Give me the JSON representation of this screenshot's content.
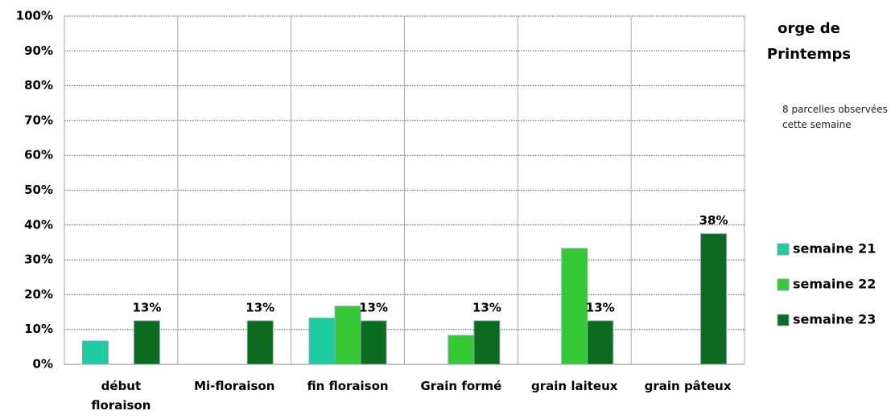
{
  "chart_data": {
    "type": "bar",
    "title": "orge de\nPrintemps",
    "subtitle": "8 parcelles observées cette semaine",
    "categories": [
      "début\nfloraison",
      "Mi-floraison",
      "fin floraison",
      "Grain formé",
      "grain laiteux",
      "grain pâteux"
    ],
    "series": [
      {
        "name": "semaine 21",
        "color": "#1ecba2",
        "values": [
          6.7,
          null,
          13.3,
          null,
          null,
          null
        ]
      },
      {
        "name": "semaine 22",
        "color": "#35c935",
        "values": [
          null,
          null,
          16.7,
          8.3,
          33.3,
          null
        ]
      },
      {
        "name": "semaine 23",
        "color": "#0b6b1f",
        "values": [
          12.5,
          12.5,
          12.5,
          12.5,
          12.5,
          37.5
        ],
        "value_labels": [
          "13%",
          "13%",
          "13%",
          "13%",
          "13%",
          "38%"
        ]
      }
    ],
    "ylim": [
      0,
      100
    ],
    "yticks": [
      {
        "value": 0,
        "label": "0%"
      },
      {
        "value": 10,
        "label": "10%"
      },
      {
        "value": 20,
        "label": "20%"
      },
      {
        "value": 30,
        "label": "30%"
      },
      {
        "value": 40,
        "label": "40%"
      },
      {
        "value": 50,
        "label": "50%"
      },
      {
        "value": 60,
        "label": "60%"
      },
      {
        "value": 70,
        "label": "70%"
      },
      {
        "value": 80,
        "label": "80%"
      },
      {
        "value": 90,
        "label": "90%"
      },
      {
        "value": 100,
        "label": "100%"
      }
    ],
    "grid": true,
    "legend": "right"
  }
}
